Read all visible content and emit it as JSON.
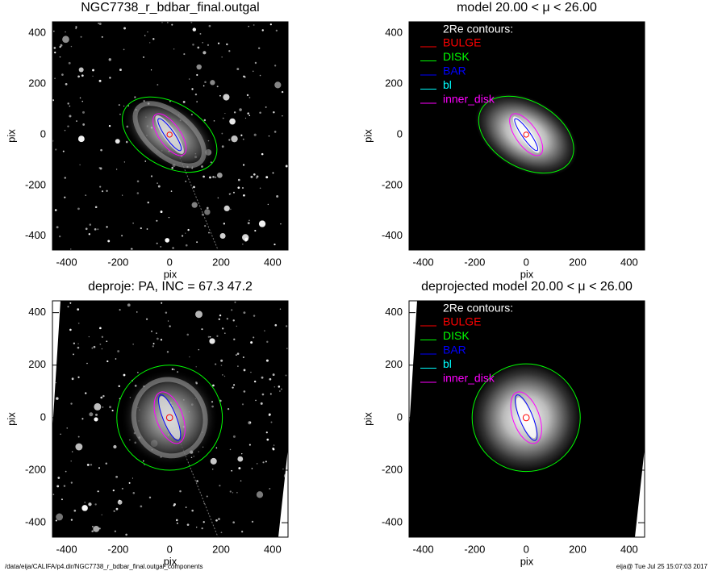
{
  "chart_data": [
    {
      "type": "image",
      "title": "NGC7738_r_bdbar_final.outgal",
      "xlabel": "pix",
      "ylabel": "pix",
      "xlim": [
        -455,
        460
      ],
      "ylim": [
        -455,
        445
      ],
      "xticks": [
        -400,
        -200,
        0,
        200,
        400
      ],
      "yticks": [
        -400,
        -200,
        0,
        200,
        400
      ]
    },
    {
      "type": "image",
      "title": "model  20.00 < μ <  26.00",
      "xlabel": "pix",
      "ylabel": "pix",
      "xlim": [
        -455,
        460
      ],
      "ylim": [
        -455,
        445
      ],
      "xticks": [
        -400,
        -200,
        0,
        200,
        400
      ],
      "yticks": [
        -400,
        -200,
        0,
        200,
        400
      ],
      "legend_title": "2Re contours:",
      "series": [
        {
          "name": "BULGE",
          "color": "#ff0000"
        },
        {
          "name": "DISK",
          "color": "#00ff00"
        },
        {
          "name": "BAR",
          "color": "#0000ff"
        },
        {
          "name": "bl",
          "color": "#00ffff"
        },
        {
          "name": "inner_disk",
          "color": "#ff00ff"
        }
      ]
    },
    {
      "type": "image",
      "title": "deproje: PA, INC =  67.3    47.2",
      "xlabel": "pix",
      "ylabel": "pix",
      "xlim": [
        -455,
        460
      ],
      "ylim": [
        -455,
        445
      ],
      "xticks": [
        -400,
        -200,
        0,
        200,
        400
      ],
      "yticks": [
        -400,
        -200,
        0,
        200,
        400
      ]
    },
    {
      "type": "image",
      "title": "deprojected model  20.00 < μ <  26.00",
      "xlabel": "pix",
      "ylabel": "pix",
      "xlim": [
        -455,
        460
      ],
      "ylim": [
        -455,
        445
      ],
      "xticks": [
        -400,
        -200,
        0,
        200,
        400
      ],
      "yticks": [
        -400,
        -200,
        0,
        200,
        400
      ],
      "legend_title": "2Re contours:",
      "series": [
        {
          "name": "BULGE",
          "color": "#ff0000"
        },
        {
          "name": "DISK",
          "color": "#00ff00"
        },
        {
          "name": "BAR",
          "color": "#0000ff"
        },
        {
          "name": "bl",
          "color": "#00ffff"
        },
        {
          "name": "inner_disk",
          "color": "#ff00ff"
        }
      ]
    }
  ],
  "footer": {
    "left": "/data/eija/CALIFA/p4.dir/NGC7738_r_bdbar_final.outgal_components",
    "right": "eija@  Tue Jul 25 15:07:03 2017"
  }
}
